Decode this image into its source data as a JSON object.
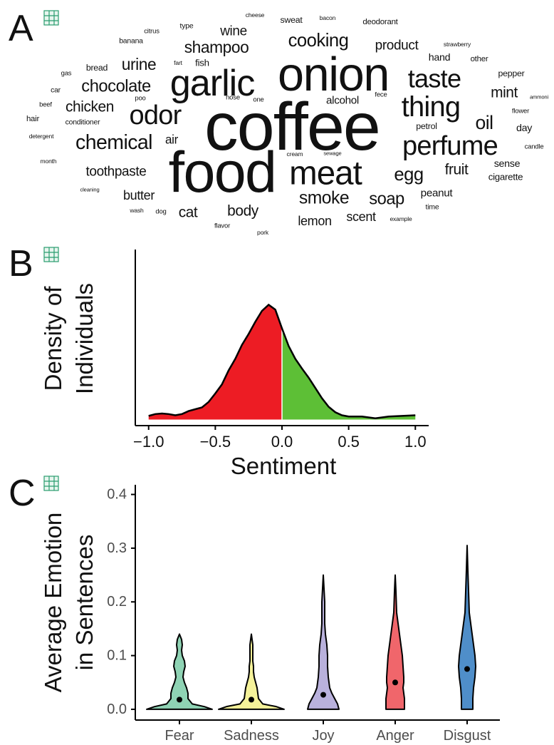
{
  "chart_data": [
    {
      "type": "wordcloud",
      "panel_label": "A",
      "words": [
        "coffee",
        "onion",
        "food",
        "garlic",
        "meat",
        "thing",
        "perfume",
        "taste",
        "odor",
        "chemical",
        "cooking",
        "shampoo",
        "chocolate",
        "chicken",
        "urine",
        "toothpaste",
        "smoke",
        "soap",
        "egg",
        "oil",
        "mint",
        "fruit",
        "product",
        "body",
        "cat",
        "butter",
        "lemon",
        "scent",
        "wine",
        "alcohol",
        "air",
        "peanut",
        "sense",
        "cigarette",
        "hand",
        "pepper",
        "day",
        "petrol",
        "fish",
        "bread",
        "sweat",
        "deodorant",
        "other",
        "flower",
        "candle",
        "ammoni",
        "strawberry",
        "cheese",
        "bacon",
        "type",
        "citrus",
        "banana",
        "fart",
        "poo",
        "nose",
        "one",
        "fece",
        "gas",
        "car",
        "beef",
        "hair",
        "conditioner",
        "detergent",
        "month",
        "cleaning",
        "wash",
        "dog",
        "flavor",
        "pork",
        "cream",
        "sewage",
        "example",
        "time"
      ],
      "weights": [
        100,
        70,
        85,
        55,
        50,
        42,
        40,
        38,
        40,
        30,
        27,
        24,
        25,
        22,
        24,
        20,
        26,
        25,
        27,
        28,
        22,
        22,
        20,
        22,
        22,
        19,
        19,
        19,
        20,
        16,
        18,
        16,
        15,
        14,
        15,
        13,
        15,
        13,
        14,
        13,
        13,
        12,
        12,
        10,
        10,
        8,
        9,
        9,
        9,
        11,
        10,
        11,
        9,
        10,
        10,
        10,
        10,
        10,
        11,
        10,
        12,
        11,
        9,
        9,
        8,
        9,
        10,
        10,
        9,
        9,
        8,
        9,
        11
      ],
      "color": "#111111"
    },
    {
      "type": "area",
      "panel_label": "B",
      "x": [
        -1,
        -0.95,
        -0.9,
        -0.85,
        -0.8,
        -0.75,
        -0.7,
        -0.65,
        -0.6,
        -0.55,
        -0.5,
        -0.45,
        -0.4,
        -0.35,
        -0.3,
        -0.25,
        -0.2,
        -0.15,
        -0.1,
        -0.05,
        0,
        0.05,
        0.1,
        0.15,
        0.2,
        0.25,
        0.3,
        0.35,
        0.4,
        0.45,
        0.5,
        0.6,
        0.7,
        0.8,
        0.9,
        1
      ],
      "values": [
        0.06,
        0.09,
        0.1,
        0.09,
        0.07,
        0.09,
        0.14,
        0.17,
        0.2,
        0.29,
        0.43,
        0.58,
        0.81,
        1.0,
        1.23,
        1.41,
        1.61,
        1.79,
        1.89,
        1.81,
        1.5,
        1.21,
        1.0,
        0.84,
        0.69,
        0.52,
        0.35,
        0.21,
        0.12,
        0.07,
        0.05,
        0.05,
        0.02,
        0.05,
        0.06,
        0.07
      ],
      "negative_color": "#ed1c24",
      "positive_color": "#5dbf36",
      "xlim": [
        -1.1,
        1.1
      ],
      "ylim": [
        -0.1,
        2.8
      ],
      "xticks": [
        {
          "value": -1,
          "label": "−1.0"
        },
        {
          "value": -0.5,
          "label": "−0.5"
        },
        {
          "value": 0,
          "label": "0.0"
        },
        0.5,
        {
          "value": 1,
          "label": "1.0"
        }
      ],
      "xlabel": "Sentiment",
      "ylabel": [
        "Density of",
        "Individuals"
      ]
    },
    {
      "type": "violin",
      "panel_label": "C",
      "ylim": [
        -0.02,
        0.418
      ],
      "yticks": [
        {
          "value": 0,
          "label": "0.0"
        },
        0.1,
        0.2,
        0.3,
        0.4
      ],
      "ylabel": [
        "Average Emotion",
        "in Sentences"
      ],
      "series": [
        {
          "name": "Fear",
          "color": "#8fd3b4",
          "mean": 0.018,
          "y": [
            0,
            0.005,
            0.01,
            0.02,
            0.03,
            0.04,
            0.05,
            0.06,
            0.07,
            0.08,
            0.09,
            0.1,
            0.11,
            0.12,
            0.13,
            0.14
          ],
          "density": [
            46,
            35,
            18,
            12,
            12,
            10,
            7,
            5,
            6,
            8,
            7,
            4,
            3,
            4,
            3,
            0
          ]
        },
        {
          "name": "Sadness",
          "color": "#f5f29a",
          "mean": 0.018,
          "y": [
            0,
            0.005,
            0.01,
            0.02,
            0.03,
            0.04,
            0.05,
            0.06,
            0.07,
            0.08,
            0.09,
            0.1,
            0.12,
            0.14
          ],
          "density": [
            46,
            35,
            16,
            10,
            9,
            8,
            6,
            4,
            3,
            3,
            2,
            2,
            2,
            0
          ]
        },
        {
          "name": "Joy",
          "color": "#b9b1dc",
          "mean": 0.027,
          "y": [
            0,
            0.01,
            0.02,
            0.03,
            0.04,
            0.05,
            0.06,
            0.08,
            0.1,
            0.12,
            0.14,
            0.16,
            0.2,
            0.25
          ],
          "density": [
            22,
            20,
            16,
            12,
            9,
            8,
            7,
            6,
            6,
            5,
            3,
            2,
            2,
            0
          ]
        },
        {
          "name": "Anger",
          "color": "#f0666b",
          "mean": 0.05,
          "y": [
            0,
            0.02,
            0.03,
            0.04,
            0.05,
            0.06,
            0.08,
            0.1,
            0.12,
            0.14,
            0.16,
            0.18,
            0.22,
            0.25
          ],
          "density": [
            13,
            13,
            12,
            11,
            12,
            12,
            11,
            10,
            8,
            6,
            4,
            2,
            1,
            0
          ]
        },
        {
          "name": "Disgust",
          "color": "#4f8ec9",
          "mean": 0.075,
          "y": [
            0,
            0.02,
            0.04,
            0.06,
            0.08,
            0.1,
            0.12,
            0.14,
            0.16,
            0.18,
            0.22,
            0.26,
            0.305
          ],
          "density": [
            8,
            8,
            9,
            11,
            12,
            11,
            9,
            7,
            5,
            3,
            2,
            1,
            0
          ]
        }
      ]
    }
  ]
}
